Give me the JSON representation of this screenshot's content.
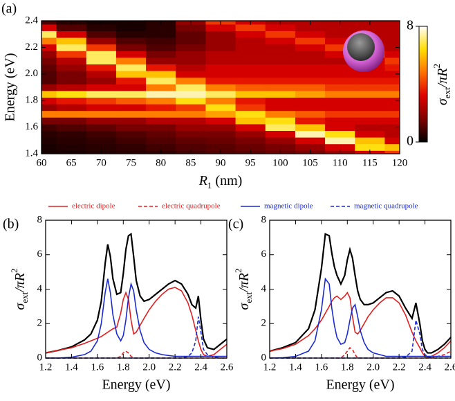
{
  "chart_data": [
    {
      "type": "heatmap",
      "panel_label": "(a)",
      "x_label": {
        "symbol": "R",
        "sub": "1",
        "unit": "(nm)"
      },
      "y_label": "Energy (eV)",
      "z_label": {
        "symbol": "σ",
        "sub": "ext",
        "rest": "/πR",
        "sup": "2"
      },
      "x": [
        60,
        65,
        70,
        75,
        80,
        85,
        90,
        95,
        100,
        105,
        110,
        115,
        120
      ],
      "y": [
        1.4,
        1.45,
        1.5,
        1.55,
        1.6,
        1.65,
        1.7,
        1.75,
        1.8,
        1.85,
        1.9,
        1.95,
        2.0,
        2.05,
        2.1,
        2.15,
        2.2,
        2.25,
        2.3,
        2.35,
        2.4
      ],
      "z": [
        [
          0.3,
          0.3,
          0.4,
          0.5,
          0.6,
          0.8,
          1,
          1.1,
          1.3,
          1.5,
          2,
          3,
          4
        ],
        [
          0.3,
          0.4,
          0.5,
          0.6,
          0.8,
          1,
          1.1,
          1.3,
          1.5,
          2,
          3,
          6.5,
          6
        ],
        [
          0.4,
          0.5,
          0.6,
          0.8,
          1,
          1.2,
          1.3,
          1.5,
          2,
          3,
          7.5,
          6,
          3
        ],
        [
          0.5,
          0.6,
          0.8,
          1,
          1.2,
          1.5,
          1.5,
          2,
          3,
          7.5,
          6.5,
          3,
          2.5
        ],
        [
          0.8,
          1,
          1.2,
          1.5,
          1.5,
          2,
          2,
          3,
          7,
          6,
          3,
          2.5,
          2.5
        ],
        [
          1.5,
          1.5,
          2,
          2,
          2.5,
          2.5,
          3,
          6,
          6.5,
          3.5,
          3,
          3,
          3
        ],
        [
          5,
          5,
          5,
          5,
          5,
          5,
          5.5,
          6.5,
          5,
          4.5,
          4,
          4,
          4
        ],
        [
          2,
          2.5,
          3,
          3,
          3.5,
          4,
          6.5,
          4,
          3,
          3,
          3,
          3,
          3
        ],
        [
          3,
          3.5,
          4,
          4.5,
          5,
          6.5,
          5,
          3.5,
          3,
          3,
          3,
          3,
          3
        ],
        [
          6,
          6.5,
          7,
          7,
          7.5,
          7.5,
          7,
          6,
          6,
          5.5,
          5,
          5,
          5
        ],
        [
          2,
          2.5,
          3,
          3,
          5,
          7,
          5,
          4.5,
          4.5,
          4.5,
          4,
          4,
          4
        ],
        [
          1,
          1.5,
          2,
          3.5,
          7,
          5,
          3.5,
          3.5,
          3.5,
          3.5,
          3.5,
          3.5,
          3.5
        ],
        [
          1,
          1.5,
          2.5,
          6,
          6,
          3,
          3,
          3,
          3,
          3,
          3,
          3,
          3
        ],
        [
          1.2,
          2,
          3.5,
          7,
          3.5,
          2.5,
          3,
          3,
          3,
          3,
          3,
          3,
          3.5
        ],
        [
          1.5,
          2.5,
          7,
          5,
          2,
          2,
          2.5,
          2.5,
          2.5,
          2.5,
          2.5,
          3,
          4
        ],
        [
          2,
          4,
          7,
          3,
          1.5,
          2,
          2.5,
          2.5,
          2.5,
          2.5,
          3,
          4,
          3
        ],
        [
          3,
          7,
          4,
          1.5,
          1,
          1.5,
          2,
          2.5,
          2.5,
          3,
          4,
          3,
          2.5
        ],
        [
          5,
          6,
          2,
          1,
          0.8,
          1.2,
          2,
          2.5,
          3,
          4,
          3,
          2.5,
          2.5
        ],
        [
          7,
          3,
          1,
          0.5,
          0.5,
          1.2,
          2,
          3,
          4,
          3,
          2.5,
          2.5,
          2.5
        ],
        [
          3,
          1,
          0.5,
          0.3,
          0.5,
          1.5,
          3,
          4,
          3,
          2.5,
          2.5,
          2.5,
          2.5
        ],
        [
          1,
          0.5,
          0.3,
          0.3,
          0.5,
          2,
          4,
          3,
          2.5,
          2.5,
          2.5,
          2.5,
          2.5
        ]
      ],
      "xlim": [
        60,
        120
      ],
      "ylim": [
        1.4,
        2.4
      ],
      "xticks": [
        60,
        65,
        70,
        75,
        80,
        85,
        90,
        95,
        100,
        105,
        110,
        115,
        120
      ],
      "yticks": [
        1.4,
        1.6,
        1.8,
        {
          "value": 2,
          "label": "2.0"
        },
        2.2,
        2.4
      ],
      "zlim": [
        0,
        8
      ],
      "zticks": [
        0,
        8
      ],
      "colormap": [
        "#000000",
        "#800000",
        "#e00000",
        "#ff7000",
        "#ffdd00",
        "#ffffff"
      ]
    },
    {
      "type": "line",
      "panel_label": "(b)",
      "x_label": "Energy (eV)",
      "y_label": {
        "symbol": "σ",
        "sub": "ext",
        "rest": "/πR",
        "sup": "2"
      },
      "x": [
        1.2,
        1.3,
        1.4,
        1.5,
        1.55,
        1.6,
        1.63,
        1.66,
        1.68,
        1.7,
        1.72,
        1.75,
        1.78,
        1.8,
        1.82,
        1.84,
        1.86,
        1.88,
        1.9,
        1.93,
        1.96,
        2.0,
        2.05,
        2.1,
        2.15,
        2.2,
        2.25,
        2.3,
        2.33,
        2.36,
        2.38,
        2.4,
        2.42,
        2.45,
        2.5,
        2.55,
        2.6
      ],
      "series": [
        {
          "color": "#000000",
          "dash": false,
          "values": [
            0.3,
            0.45,
            0.65,
            1.05,
            1.4,
            2.2,
            3.3,
            5.5,
            6.6,
            5.9,
            4.6,
            3.7,
            3.8,
            4.9,
            6.3,
            7.1,
            7.2,
            5.9,
            4.5,
            3.6,
            3.3,
            3.4,
            3.7,
            4.0,
            4.3,
            4.5,
            4.3,
            3.7,
            3.1,
            2.9,
            3.6,
            2.2,
            1.1,
            0.6,
            0.5,
            0.8,
            1.1
          ]
        },
        {
          "name": "electric dipole",
          "color": "#e02020",
          "dash": false,
          "values": [
            0.3,
            0.45,
            0.6,
            0.85,
            1.0,
            1.15,
            1.25,
            1.4,
            1.5,
            1.6,
            1.7,
            1.8,
            2.6,
            3.4,
            3.8,
            3.4,
            2.2,
            1.4,
            1.5,
            1.9,
            2.3,
            2.8,
            3.3,
            3.7,
            4.0,
            4.1,
            3.9,
            3.2,
            2.5,
            1.6,
            1.0,
            0.5,
            0.2,
            0.1,
            0.2,
            0.5,
            0.8
          ]
        },
        {
          "name": "electric quadrupole",
          "color": "#e02020",
          "dash": true,
          "values": [
            0,
            0,
            0,
            0,
            0,
            0,
            0,
            0,
            0,
            0,
            0,
            0,
            0.1,
            0.3,
            0.4,
            0.3,
            0.1,
            0,
            0,
            0,
            0,
            0,
            0,
            0,
            0,
            0,
            0,
            0,
            0,
            0,
            0,
            0,
            0,
            0,
            0,
            0,
            0
          ]
        },
        {
          "name": "magnetic dipole",
          "color": "#1a2ad0",
          "dash": false,
          "values": [
            0,
            0,
            0.05,
            0.2,
            0.4,
            1.0,
            2.0,
            3.8,
            4.6,
            3.8,
            2.5,
            1.4,
            1.0,
            1.3,
            2.2,
            3.5,
            4.3,
            3.9,
            2.8,
            1.6,
            0.9,
            0.5,
            0.3,
            0.2,
            0.15,
            0.1,
            0.1,
            0.1,
            0.1,
            0.1,
            0.1,
            0.1,
            0.1,
            0.1,
            0.1,
            0.1,
            0.1
          ]
        },
        {
          "name": "magnetic quadrupole",
          "color": "#1a2ad0",
          "dash": true,
          "values": [
            0,
            0,
            0,
            0,
            0,
            0,
            0,
            0,
            0,
            0,
            0,
            0,
            0,
            0,
            0,
            0,
            0,
            0,
            0,
            0,
            0,
            0,
            0,
            0,
            0,
            0,
            0,
            0.1,
            0.3,
            1.0,
            2.4,
            1.5,
            0.5,
            0.2,
            0.05,
            0,
            0
          ]
        }
      ],
      "xlim": [
        1.2,
        2.6
      ],
      "ylim": [
        0,
        8
      ],
      "xticks": [
        1.2,
        1.4,
        1.6,
        1.8,
        {
          "value": 2,
          "label": "2.0"
        },
        2.2,
        2.4,
        2.6
      ],
      "yticks": [
        0,
        2,
        4,
        6,
        8
      ]
    },
    {
      "type": "line",
      "panel_label": "(c)",
      "x_label": "Energy (eV)",
      "y_label": {
        "symbol": "σ",
        "sub": "ext",
        "rest": "/πR",
        "sup": "2"
      },
      "x": [
        1.2,
        1.3,
        1.4,
        1.5,
        1.55,
        1.6,
        1.63,
        1.66,
        1.68,
        1.7,
        1.72,
        1.75,
        1.78,
        1.8,
        1.82,
        1.84,
        1.86,
        1.88,
        1.9,
        1.93,
        1.96,
        2.0,
        2.05,
        2.1,
        2.15,
        2.2,
        2.25,
        2.3,
        2.33,
        2.36,
        2.38,
        2.4,
        2.42,
        2.45,
        2.5,
        2.55,
        2.6
      ],
      "series": [
        {
          "color": "#000000",
          "dash": false,
          "values": [
            0.4,
            0.6,
            0.9,
            1.7,
            2.8,
            5.2,
            7.2,
            7.1,
            6.1,
            5.3,
            4.8,
            4.3,
            4.8,
            5.7,
            6.3,
            5.8,
            4.8,
            3.9,
            3.4,
            3.1,
            3.1,
            3.2,
            3.5,
            3.8,
            3.9,
            3.6,
            2.9,
            2.3,
            3.2,
            2.0,
            1.0,
            0.5,
            0.3,
            0.3,
            0.5,
            0.8,
            1.2
          ]
        },
        {
          "color": "#e02020",
          "dash": false,
          "values": [
            0.4,
            0.55,
            0.8,
            1.3,
            1.7,
            2.2,
            2.6,
            3.0,
            3.3,
            3.5,
            3.6,
            3.4,
            3.6,
            3.8,
            3.5,
            2.4,
            1.5,
            1.4,
            1.6,
            2.0,
            2.4,
            2.8,
            3.2,
            3.5,
            3.5,
            3.2,
            2.5,
            1.5,
            1.0,
            0.6,
            0.3,
            0.1,
            0.05,
            0.1,
            0.3,
            0.6,
            1.0
          ]
        },
        {
          "color": "#e02020",
          "dash": true,
          "values": [
            0,
            0,
            0,
            0,
            0,
            0,
            0,
            0,
            0,
            0,
            0,
            0,
            0.2,
            0.4,
            0.6,
            0.5,
            0.2,
            0,
            0,
            0,
            0,
            0,
            0,
            0,
            0,
            0,
            0,
            0,
            0,
            0,
            0,
            0,
            0,
            0,
            0.1,
            0.2,
            0.4
          ]
        },
        {
          "color": "#1a2ad0",
          "dash": false,
          "values": [
            0,
            0.02,
            0.1,
            0.4,
            1.0,
            2.8,
            4.6,
            4.3,
            2.9,
            1.9,
            1.2,
            0.8,
            0.9,
            1.4,
            2.2,
            2.9,
            3.1,
            2.4,
            1.6,
            0.9,
            0.5,
            0.3,
            0.2,
            0.1,
            0.1,
            0.1,
            0.1,
            0.1,
            0.1,
            0.1,
            0.1,
            0.1,
            0.1,
            0.1,
            0.1,
            0.1,
            0.1
          ]
        },
        {
          "color": "#1a2ad0",
          "dash": true,
          "values": [
            0,
            0,
            0,
            0,
            0,
            0,
            0,
            0,
            0,
            0,
            0,
            0,
            0,
            0,
            0,
            0,
            0,
            0,
            0,
            0,
            0,
            0,
            0,
            0,
            0,
            0,
            0.05,
            0.4,
            2.2,
            1.4,
            0.5,
            0.2,
            0.1,
            0,
            0,
            0,
            0
          ]
        }
      ],
      "xlim": [
        1.2,
        2.6
      ],
      "ylim": [
        0,
        8
      ],
      "xticks": [
        1.2,
        1.4,
        1.6,
        1.8,
        {
          "value": 2,
          "label": "2.0"
        },
        2.2,
        2.4,
        2.6
      ],
      "yticks": [
        0,
        2,
        4,
        6,
        8
      ]
    }
  ]
}
